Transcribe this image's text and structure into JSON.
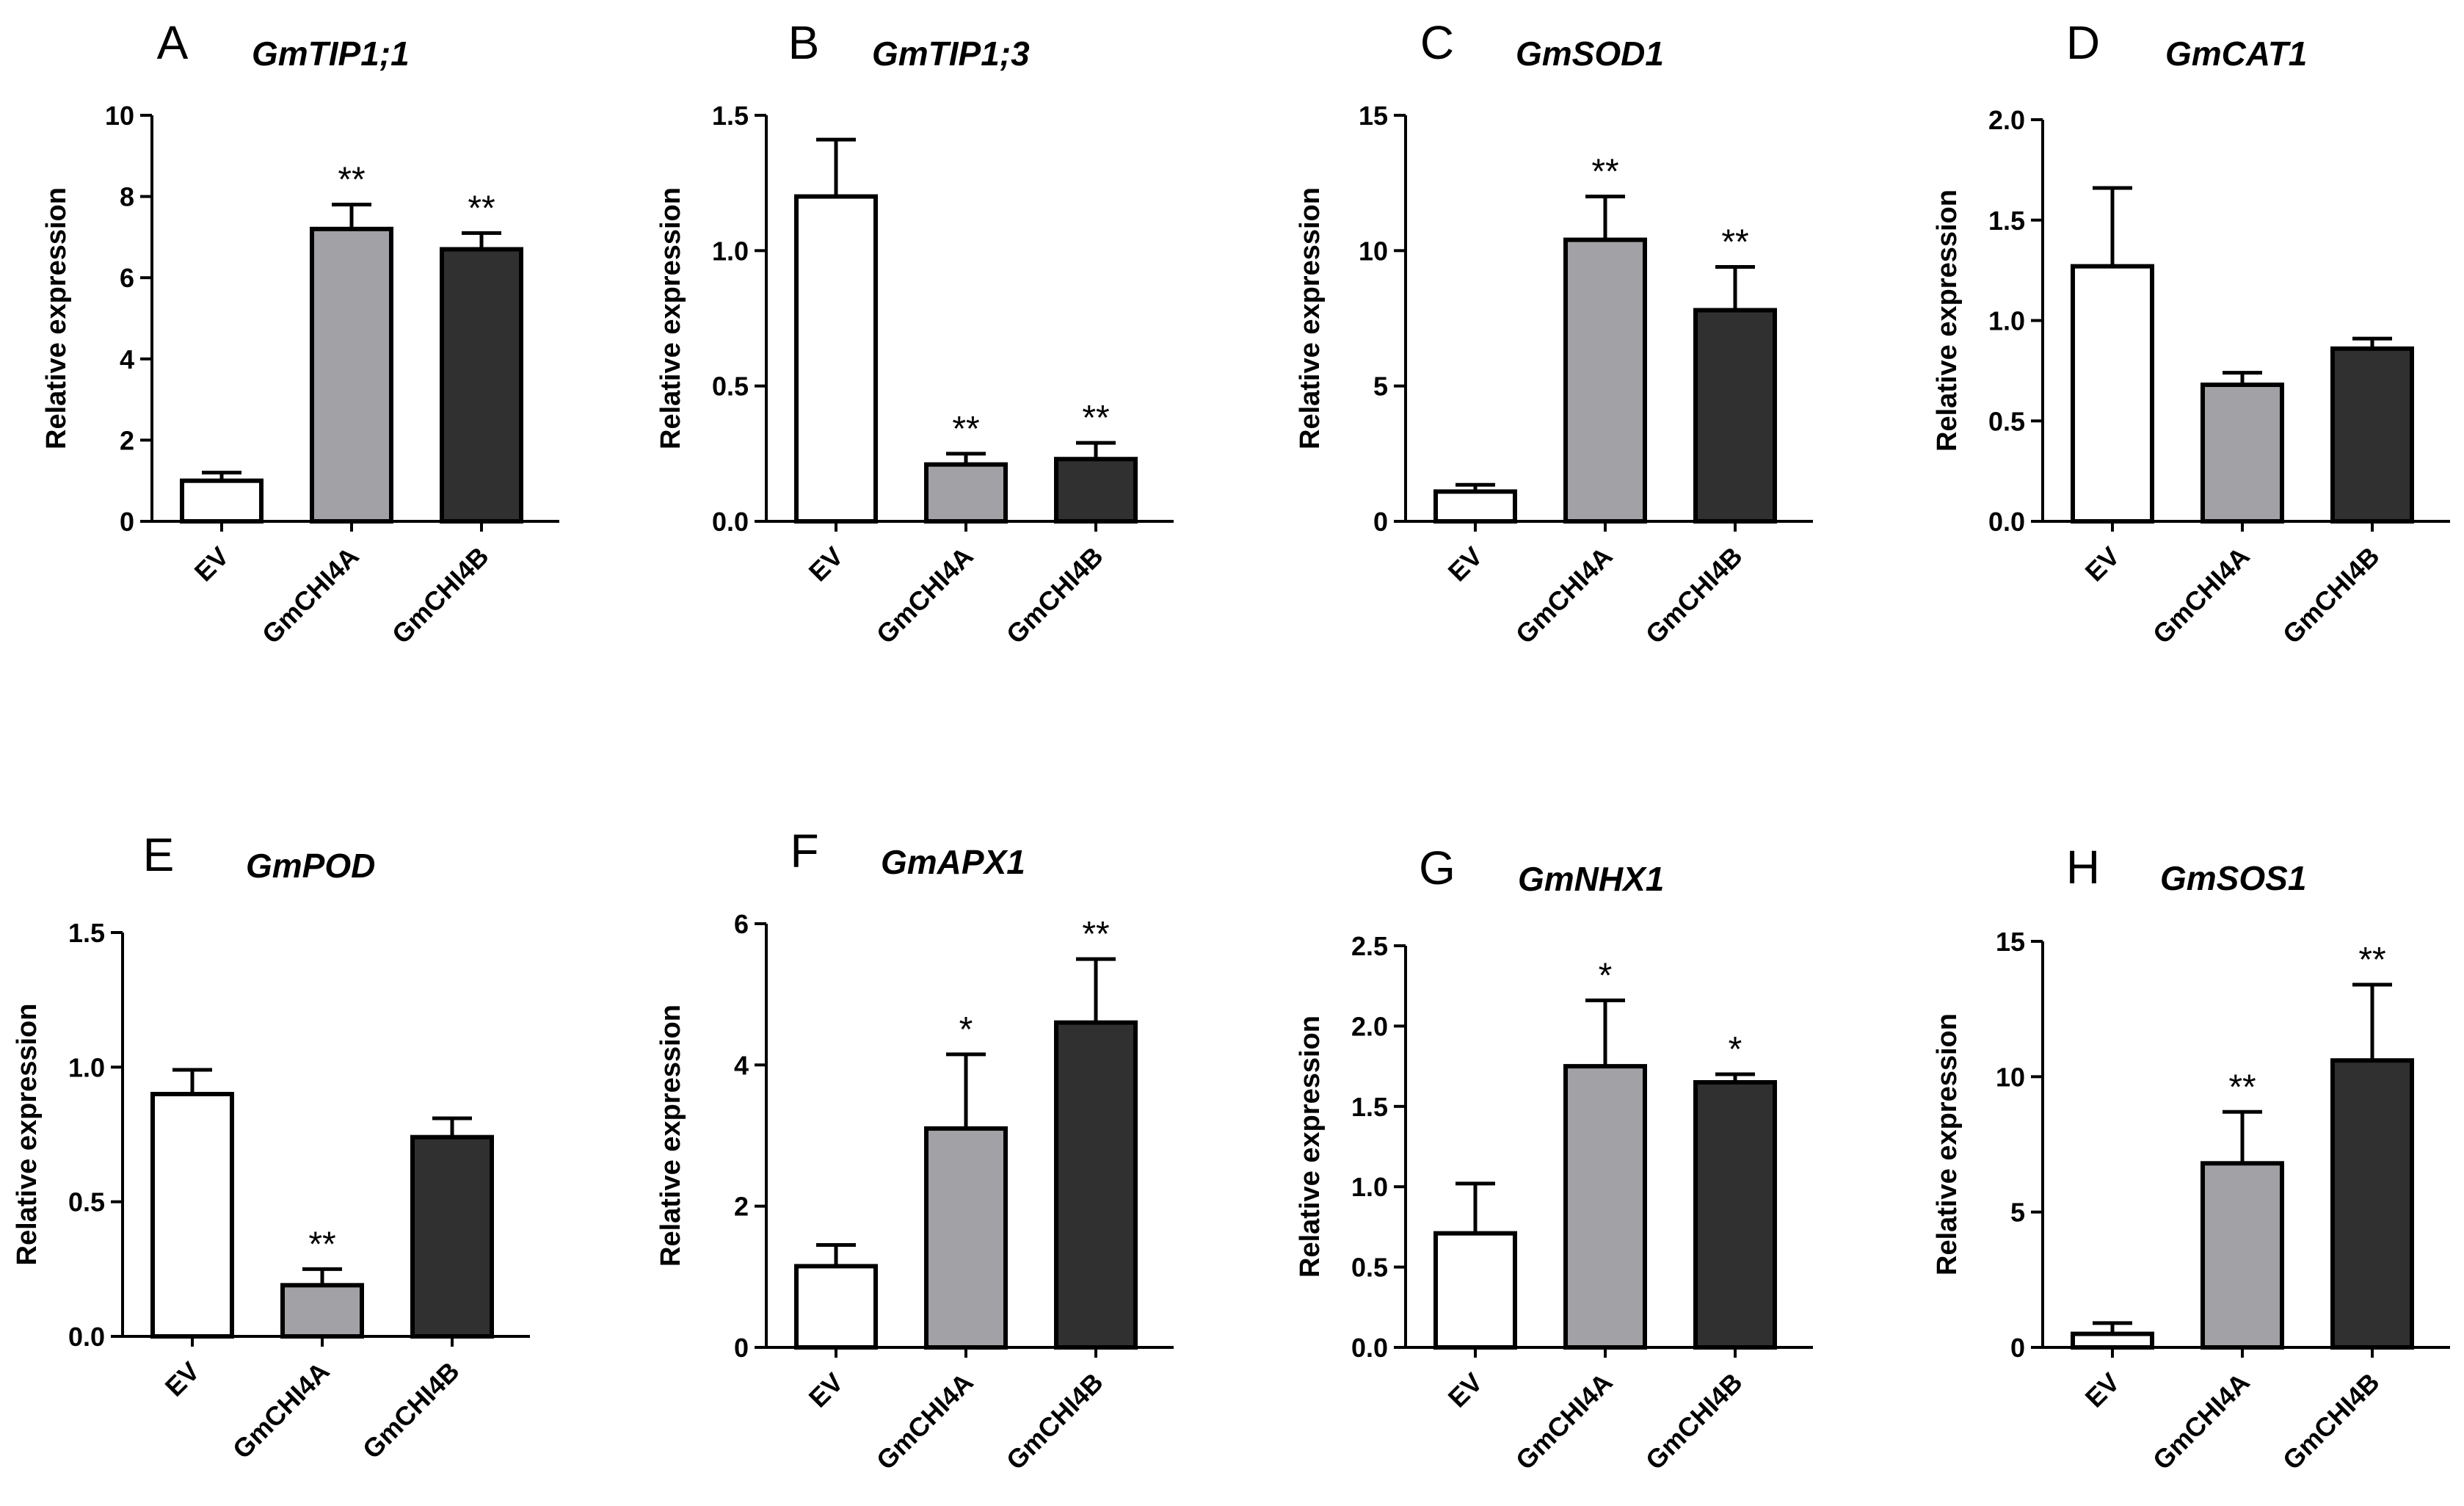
{
  "colors": {
    "EV": "#ffffff",
    "GmCHI4A": "#a2a2a6",
    "GmCHI4B": "#303030",
    "stroke": "#000000"
  },
  "chart_data": [
    {
      "panel": "A",
      "type": "bar",
      "title": "GmTIP1;1",
      "ylabel": "Relative expression",
      "categories": [
        "EV",
        "GmCHI4A",
        "GmCHI4B"
      ],
      "values": [
        1.0,
        7.2,
        6.7
      ],
      "errors": [
        0.2,
        0.6,
        0.4
      ],
      "significance": [
        "",
        "**",
        "**"
      ],
      "ylim": [
        0,
        10
      ],
      "yticks": [
        "0",
        "2",
        "4",
        "6",
        "8",
        "10"
      ]
    },
    {
      "panel": "B",
      "type": "bar",
      "title": "GmTIP1;3",
      "ylabel": "Relative expression",
      "categories": [
        "EV",
        "GmCHI4A",
        "GmCHI4B"
      ],
      "values": [
        1.2,
        0.21,
        0.23
      ],
      "errors": [
        0.21,
        0.04,
        0.06
      ],
      "significance": [
        "",
        "**",
        "**"
      ],
      "ylim": [
        0,
        1.5
      ],
      "yticks": [
        "0.0",
        "0.5",
        "1.0",
        "1.5"
      ]
    },
    {
      "panel": "C",
      "type": "bar",
      "title": "GmSOD1",
      "ylabel": "Relative expression",
      "categories": [
        "EV",
        "GmCHI4A",
        "GmCHI4B"
      ],
      "values": [
        1.1,
        10.4,
        7.8
      ],
      "errors": [
        0.25,
        1.6,
        1.6
      ],
      "significance": [
        "",
        "**",
        "**"
      ],
      "ylim": [
        0,
        15
      ],
      "yticks": [
        "0",
        "5",
        "10",
        "15"
      ]
    },
    {
      "panel": "D",
      "type": "bar",
      "title": "GmCAT1",
      "ylabel": "Relative expression",
      "categories": [
        "EV",
        "GmCHI4A",
        "GmCHI4B"
      ],
      "values": [
        1.27,
        0.68,
        0.86
      ],
      "errors": [
        0.39,
        0.06,
        0.05
      ],
      "significance": [
        "",
        "",
        ""
      ],
      "ylim": [
        0,
        2.0
      ],
      "yticks": [
        "0.0",
        "0.5",
        "1.0",
        "1.5",
        "2.0"
      ]
    },
    {
      "panel": "E",
      "type": "bar",
      "title": "GmPOD",
      "ylabel": "Relative expression",
      "categories": [
        "EV",
        "GmCHI4A",
        "GmCHI4B"
      ],
      "values": [
        0.9,
        0.19,
        0.74
      ],
      "errors": [
        0.09,
        0.06,
        0.07
      ],
      "significance": [
        "",
        "**",
        ""
      ],
      "ylim": [
        0,
        1.5
      ],
      "yticks": [
        "0.0",
        "0.5",
        "1.0",
        "1.5"
      ]
    },
    {
      "panel": "F",
      "type": "bar",
      "title": "GmAPX1",
      "ylabel": "Relative expression",
      "categories": [
        "EV",
        "GmCHI4A",
        "GmCHI4B"
      ],
      "values": [
        1.15,
        3.1,
        4.6
      ],
      "errors": [
        0.3,
        1.05,
        0.9
      ],
      "significance": [
        "",
        "*",
        "**"
      ],
      "ylim": [
        0,
        6
      ],
      "yticks": [
        "0",
        "2",
        "4",
        "6"
      ]
    },
    {
      "panel": "G",
      "type": "bar",
      "title": "GmNHX1",
      "ylabel": "Relative expression",
      "categories": [
        "EV",
        "GmCHI4A",
        "GmCHI4B"
      ],
      "values": [
        0.71,
        1.75,
        1.65
      ],
      "errors": [
        0.31,
        0.41,
        0.05
      ],
      "significance": [
        "",
        "*",
        "*"
      ],
      "ylim": [
        0,
        2.5
      ],
      "yticks": [
        "0.0",
        "0.5",
        "1.0",
        "1.5",
        "2.0",
        "2.5"
      ]
    },
    {
      "panel": "H",
      "type": "bar",
      "title": "GmSOS1",
      "ylabel": "Relative expression",
      "categories": [
        "EV",
        "GmCHI4A",
        "GmCHI4B"
      ],
      "values": [
        0.5,
        6.8,
        10.6
      ],
      "errors": [
        0.4,
        1.9,
        2.8
      ],
      "significance": [
        "",
        "**",
        "**"
      ],
      "ylim": [
        0,
        15
      ],
      "yticks": [
        "0",
        "5",
        "10",
        "15"
      ]
    }
  ]
}
